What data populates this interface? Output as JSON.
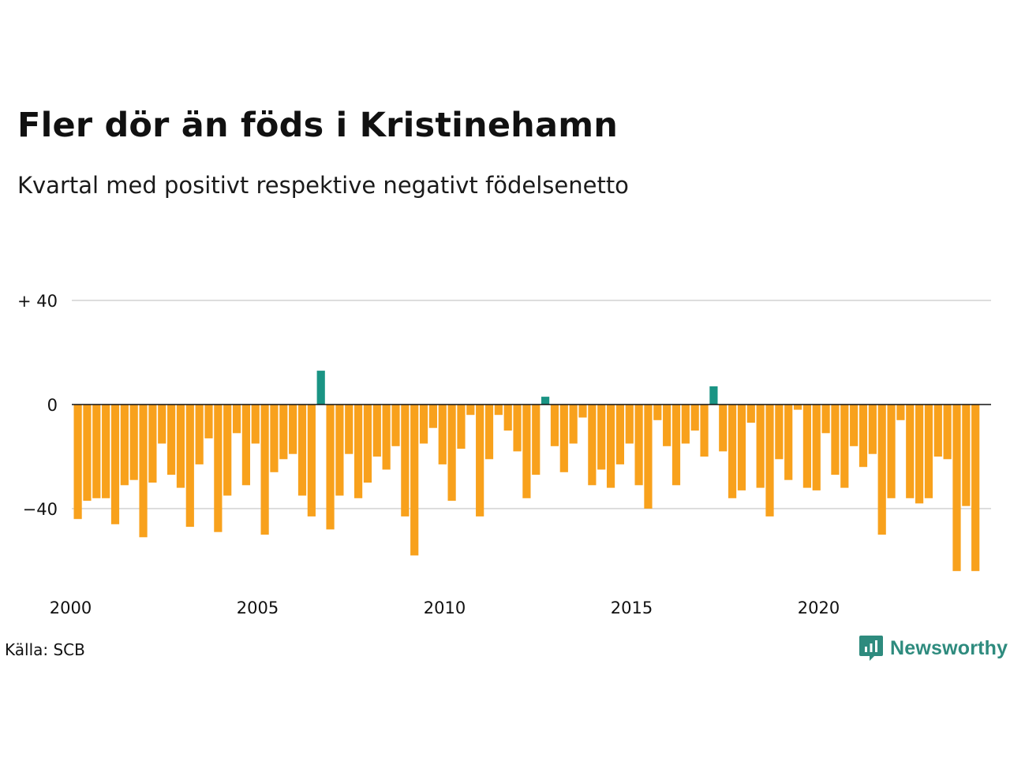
{
  "header": {
    "title": "Fler dör än föds i Kristinehamn",
    "subtitle": "Kvartal med positivt respektive negativt födelsenetto"
  },
  "footer": {
    "source": "Källa: SCB",
    "brand": "Newsworthy"
  },
  "colors": {
    "positive": "#1a9484",
    "negative": "#f8a11c",
    "grid": "#dddddd",
    "brand": "#2e8b7e"
  },
  "chart_data": {
    "type": "bar",
    "title": "Fler dör än föds i Kristinehamn",
    "subtitle": "Kvartal med positivt respektive negativt födelsenetto",
    "x_start": "2000 Q1",
    "x_ticks": [
      "2000",
      "2005",
      "2010",
      "2015",
      "2020"
    ],
    "y_ticks": [
      {
        "value": 40,
        "label": "+ 40"
      },
      {
        "value": 0,
        "label": "0"
      },
      {
        "value": -40,
        "label": "−40"
      }
    ],
    "ylim": [
      -66,
      42
    ],
    "grid": true,
    "values": [
      -44,
      -37,
      -36,
      -36,
      -46,
      -31,
      -29,
      -51,
      -30,
      -15,
      -27,
      -32,
      -47,
      -23,
      -13,
      -49,
      -35,
      -11,
      -31,
      -15,
      -50,
      -26,
      -21,
      -19,
      -35,
      -43,
      13,
      -48,
      -35,
      -19,
      -36,
      -30,
      -20,
      -25,
      -16,
      -43,
      -58,
      -15,
      -9,
      -23,
      -37,
      -17,
      -4,
      -43,
      -21,
      -4,
      -10,
      -18,
      -36,
      -27,
      3,
      -16,
      -26,
      -15,
      -5,
      -31,
      -25,
      -32,
      -23,
      -15,
      -31,
      -40,
      -6,
      -16,
      -31,
      -15,
      -10,
      -20,
      7,
      -18,
      -36,
      -33,
      -7,
      -32,
      -43,
      -21,
      -29,
      -2,
      -32,
      -33,
      -11,
      -27,
      -32,
      -16,
      -24,
      -19,
      -50,
      -36,
      -6,
      -36,
      -38,
      -36,
      -20,
      -21,
      -64,
      -39,
      -64
    ]
  }
}
